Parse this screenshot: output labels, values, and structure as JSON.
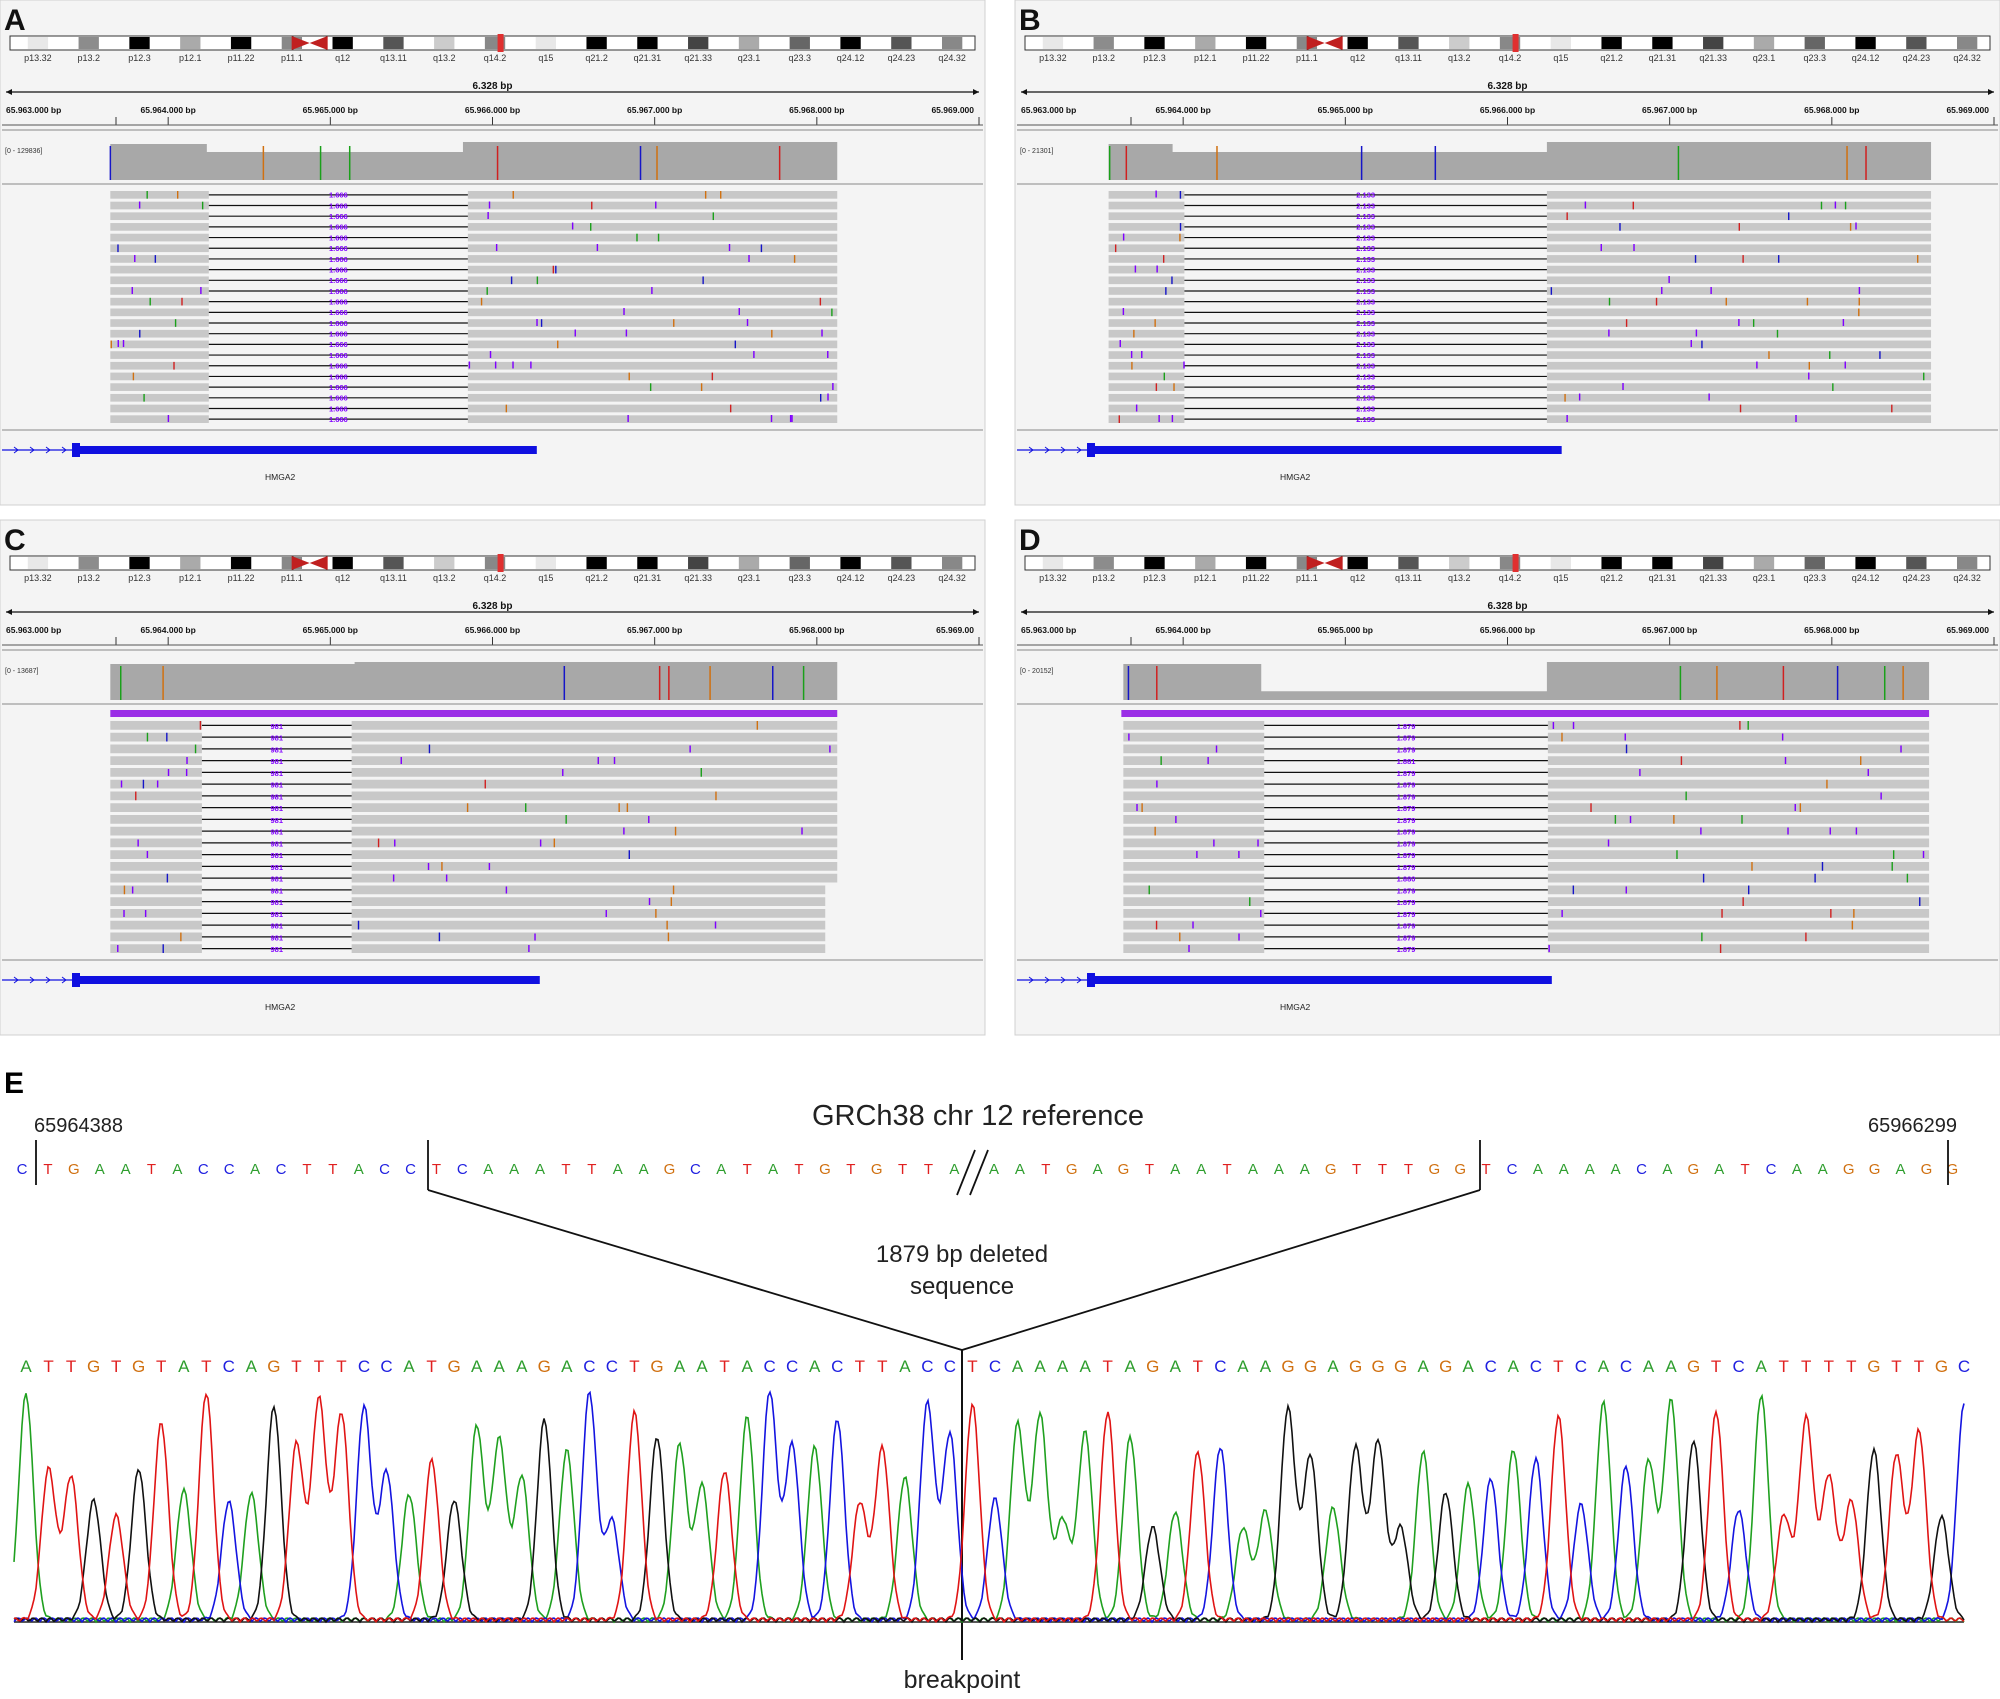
{
  "panels": [
    {
      "letter": "A",
      "ideogram_bands": [
        "p13.32",
        "p13.2",
        "p12.3",
        "p12.1",
        "p11.22",
        "p11.1",
        "q12",
        "q13.11",
        "q13.2",
        "q14.2",
        "q15",
        "q21.2",
        "q21.31",
        "q21.33",
        "q23.1",
        "q23.3",
        "q24.12",
        "q24.23",
        "q24.32"
      ],
      "span_label": "6.328 bp",
      "ruler_ticks": [
        "65.963.000 bp",
        "65.964.000 bp",
        "65.965.000 bp",
        "65.966.000 bp",
        "65.967.000 bp",
        "65.968.000 bp",
        "65.969.000"
      ],
      "coverage_range": "[0 - 129836]",
      "gene": "HMGA2",
      "deletion_label": "1.666",
      "read_rows": 22,
      "colors": {
        "label": "#8000ff",
        "reads": "#c8c8c8",
        "gene": "#1010e0"
      }
    },
    {
      "letter": "B",
      "ideogram_bands": [
        "p13.32",
        "p13.2",
        "p12.3",
        "p12.1",
        "p11.22",
        "p11.1",
        "q12",
        "q13.11",
        "q13.2",
        "q14.2",
        "q15",
        "q21.2",
        "q21.31",
        "q21.33",
        "q23.1",
        "q23.3",
        "q24.12",
        "q24.23",
        "q24.32"
      ],
      "span_label": "6.328 bp",
      "ruler_ticks": [
        "65.963.000 bp",
        "65.964.000 bp",
        "65.965.000 bp",
        "65.966.000 bp",
        "65.967.000 bp",
        "65.968.000 bp",
        "65.969.000"
      ],
      "coverage_range": "[0 - 21301]",
      "gene": "HMGA2",
      "deletion_label": "2.133",
      "read_rows": 22,
      "colors": {
        "label": "#8000ff",
        "reads": "#c8c8c8",
        "gene": "#1010e0"
      }
    },
    {
      "letter": "C",
      "ideogram_bands": [
        "p13.32",
        "p13.2",
        "p12.3",
        "p12.1",
        "p11.22",
        "p11.1",
        "q12",
        "q13.11",
        "q13.2",
        "q14.2",
        "q15",
        "q21.2",
        "q21.31",
        "q21.33",
        "q23.1",
        "q23.3",
        "q24.12",
        "q24.23",
        "q24.32"
      ],
      "span_label": "6.328 bp",
      "ruler_ticks": [
        "65.963.000 bp",
        "65.964.000 bp",
        "65.965.000 bp",
        "65.966.000 bp",
        "65.967.000 bp",
        "65.968.000 bp",
        "65.969.00"
      ],
      "coverage_range": "[0 - 13687]",
      "gene": "HMGA2",
      "deletion_label": "981",
      "read_rows": 20,
      "colors": {
        "label": "#8000ff",
        "reads": "#c8c8c8",
        "gene": "#1010e0"
      }
    },
    {
      "letter": "D",
      "ideogram_bands": [
        "p13.32",
        "p13.2",
        "p12.3",
        "p12.1",
        "p11.22",
        "p11.1",
        "q12",
        "q13.11",
        "q13.2",
        "q14.2",
        "q15",
        "q21.2",
        "q21.31",
        "q21.33",
        "q23.1",
        "q23.3",
        "q24.12",
        "q24.23",
        "q24.32"
      ],
      "span_label": "6.328 bp",
      "ruler_ticks": [
        "65.963.000 bp",
        "65.964.000 bp",
        "65.965.000 bp",
        "65.966.000 bp",
        "65.967.000 bp",
        "65.968.000 bp",
        "65.969.000"
      ],
      "coverage_range": "[0 - 20152]",
      "gene": "HMGA2",
      "deletion_label": "1.879",
      "alt_labels": {
        "3": "1.881",
        "13": "1.880"
      },
      "read_rows": 20,
      "colors": {
        "label": "#8000ff",
        "reads": "#c8c8c8",
        "gene": "#1010e0"
      }
    }
  ],
  "panel_e": {
    "letter": "E",
    "reference_title": "GRCh38 chr 12 reference",
    "left_coord": "65964388",
    "right_coord": "65966299",
    "reference_left": "CTGAATACCACTTACCTCAAATTAAGCATATGTGTTA",
    "reference_right": "AATGAGTAATAAAGTTTGGTCAAAACAGATCAAGGAGG",
    "deleted_label_line1": "1879 bp deleted",
    "deleted_label_line2": "sequence",
    "chromatogram_sequence": "ATTGTGTATCAGTTTCCATGAAAGACCTGAATACCACTTACCTCAAAATAGATCAAGGAGGGAGACACTCACAAGTCATTTTGTTGC",
    "breakpoint_label": "breakpoint",
    "base_colors": {
      "A": "#2e9e2e",
      "C": "#2020e0",
      "G": "#d07010",
      "T": "#e02020"
    }
  }
}
